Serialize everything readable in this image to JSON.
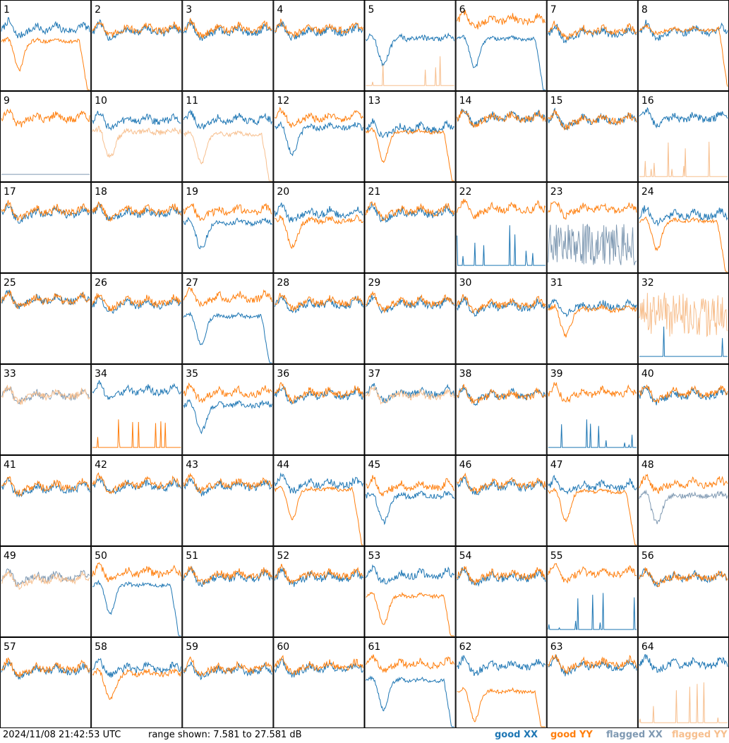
{
  "footer": {
    "timestamp": "2024/11/08 21:42:53 UTC",
    "range_text": "range shown: 7.581 to 27.581 dB"
  },
  "legend": [
    {
      "label": "good XX",
      "color": "#1f77b4"
    },
    {
      "label": "good YY",
      "color": "#ff7f0e"
    },
    {
      "label": "flagged XX",
      "color": "#7f99b2"
    },
    {
      "label": "flagged YY",
      "color": "#f7bf8e"
    }
  ],
  "chart_data": {
    "type": "line",
    "grid": {
      "rows": 8,
      "cols": 8
    },
    "ylim": [
      7.581,
      27.581
    ],
    "yunit": "dB",
    "colors": {
      "good_xx": "#1f77b4",
      "good_yy": "#ff7f0e",
      "flagged_xx": "#7f99b2",
      "flagged_yy": "#f7bf8e"
    },
    "panels": [
      {
        "label": "1",
        "xx": "good",
        "yy": "good",
        "xx_shape": "normal",
        "yy_shape": "dip_rolloff",
        "xx_level": 21.0,
        "yy_level": 18.5
      },
      {
        "label": "2",
        "xx": "good",
        "yy": "good",
        "xx_shape": "normal",
        "yy_shape": "normal",
        "xx_level": 20.5,
        "yy_level": 21.0
      },
      {
        "label": "3",
        "xx": "good",
        "yy": "good",
        "xx_shape": "normal",
        "yy_shape": "normal",
        "xx_level": 20.5,
        "yy_level": 21.0
      },
      {
        "label": "4",
        "xx": "good",
        "yy": "good",
        "xx_shape": "normal",
        "yy_shape": "normal",
        "xx_level": 20.5,
        "yy_level": 21.0
      },
      {
        "label": "5",
        "xx": "good",
        "yy": "flagged",
        "xx_shape": "dip",
        "yy_shape": "spikes",
        "xx_level": 19.0,
        "yy_level": 8.5
      },
      {
        "label": "6",
        "xx": "good",
        "yy": "good",
        "xx_shape": "dip_rolloff",
        "yy_shape": "normal",
        "xx_level": 19.0,
        "yy_level": 23.0
      },
      {
        "label": "7",
        "xx": "good",
        "yy": "good",
        "xx_shape": "normal",
        "yy_shape": "normal",
        "xx_level": 20.0,
        "yy_level": 20.5
      },
      {
        "label": "8",
        "xx": "good",
        "yy": "good",
        "xx_shape": "normal",
        "yy_shape": "rolloff",
        "xx_level": 20.5,
        "yy_level": 21.0
      },
      {
        "label": "9",
        "xx": "flagged",
        "yy": "good",
        "xx_shape": "spikes",
        "yy_shape": "normal",
        "xx_level": 9.0,
        "yy_level": 21.5
      },
      {
        "label": "10",
        "xx": "good",
        "yy": "flagged",
        "xx_shape": "normal",
        "yy_shape": "dip",
        "xx_level": 21.0,
        "yy_level": 18.5
      },
      {
        "label": "11",
        "xx": "good",
        "yy": "flagged",
        "xx_shape": "normal",
        "yy_shape": "dip_rolloff",
        "xx_level": 21.0,
        "yy_level": 18.0
      },
      {
        "label": "12",
        "xx": "good",
        "yy": "good",
        "xx_shape": "dip",
        "yy_shape": "normal",
        "xx_level": 19.5,
        "yy_level": 21.5
      },
      {
        "label": "13",
        "xx": "good",
        "yy": "good",
        "xx_shape": "normal",
        "yy_shape": "dip_rolloff",
        "xx_level": 19.0,
        "yy_level": 18.5
      },
      {
        "label": "14",
        "xx": "good",
        "yy": "good",
        "xx_shape": "normal",
        "yy_shape": "normal",
        "xx_level": 21.5,
        "yy_level": 21.5
      },
      {
        "label": "15",
        "xx": "good",
        "yy": "good",
        "xx_shape": "normal",
        "yy_shape": "normal",
        "xx_level": 21.0,
        "yy_level": 21.0
      },
      {
        "label": "16",
        "xx": "good",
        "yy": "flagged",
        "xx_shape": "normal",
        "yy_shape": "spikes",
        "xx_level": 21.5,
        "yy_level": 8.5
      },
      {
        "label": "17",
        "xx": "good",
        "yy": "good",
        "xx_shape": "normal",
        "yy_shape": "normal",
        "xx_level": 20.5,
        "yy_level": 21.0
      },
      {
        "label": "18",
        "xx": "good",
        "yy": "good",
        "xx_shape": "normal",
        "yy_shape": "normal",
        "xx_level": 20.5,
        "yy_level": 21.0
      },
      {
        "label": "19",
        "xx": "good",
        "yy": "good",
        "xx_shape": "dip",
        "yy_shape": "normal",
        "xx_level": 18.5,
        "yy_level": 21.0
      },
      {
        "label": "20",
        "xx": "good",
        "yy": "good",
        "xx_shape": "normal",
        "yy_shape": "dip",
        "xx_level": 20.5,
        "yy_level": 19.0
      },
      {
        "label": "21",
        "xx": "good",
        "yy": "good",
        "xx_shape": "normal",
        "yy_shape": "normal",
        "xx_level": 20.5,
        "yy_level": 21.0
      },
      {
        "label": "22",
        "xx": "good",
        "yy": "good",
        "xx_shape": "spikes",
        "yy_shape": "normal",
        "xx_level": 9.0,
        "yy_level": 21.5
      },
      {
        "label": "23",
        "xx": "flagged",
        "yy": "good",
        "xx_shape": "noisy",
        "yy_shape": "normal",
        "xx_level": 14.0,
        "yy_level": 21.5
      },
      {
        "label": "24",
        "xx": "good",
        "yy": "good",
        "xx_shape": "normal",
        "yy_shape": "dip_rolloff",
        "xx_level": 20.0,
        "yy_level": 19.0
      },
      {
        "label": "25",
        "xx": "good",
        "yy": "good",
        "xx_shape": "normal",
        "yy_shape": "normal",
        "xx_level": 21.5,
        "yy_level": 21.5
      },
      {
        "label": "26",
        "xx": "good",
        "yy": "good",
        "xx_shape": "normal",
        "yy_shape": "normal",
        "xx_level": 20.5,
        "yy_level": 21.0
      },
      {
        "label": "27",
        "xx": "good",
        "yy": "good",
        "xx_shape": "dip_rolloff",
        "yy_shape": "normal",
        "xx_level": 18.0,
        "yy_level": 22.0
      },
      {
        "label": "28",
        "xx": "good",
        "yy": "good",
        "xx_shape": "normal",
        "yy_shape": "normal",
        "xx_level": 20.5,
        "yy_level": 21.0
      },
      {
        "label": "29",
        "xx": "good",
        "yy": "good",
        "xx_shape": "normal",
        "yy_shape": "normal",
        "xx_level": 20.5,
        "yy_level": 21.0
      },
      {
        "label": "30",
        "xx": "good",
        "yy": "good",
        "xx_shape": "normal",
        "yy_shape": "normal",
        "xx_level": 20.0,
        "yy_level": 20.5
      },
      {
        "label": "31",
        "xx": "good",
        "yy": "good",
        "xx_shape": "normal",
        "yy_shape": "dip",
        "xx_level": 20.0,
        "yy_level": 19.5
      },
      {
        "label": "32",
        "xx": "good",
        "yy": "flagged",
        "xx_shape": "spikes",
        "yy_shape": "noisy",
        "xx_level": 9.0,
        "yy_level": 18.5
      },
      {
        "label": "33",
        "xx": "flagged",
        "yy": "flagged",
        "xx_shape": "normal",
        "yy_shape": "normal",
        "xx_level": 20.5,
        "yy_level": 20.5
      },
      {
        "label": "34",
        "xx": "good",
        "yy": "good",
        "xx_shape": "normal",
        "yy_shape": "spikes",
        "xx_level": 21.5,
        "yy_level": 9.0
      },
      {
        "label": "35",
        "xx": "good",
        "yy": "good",
        "xx_shape": "dip",
        "yy_shape": "normal",
        "xx_level": 18.5,
        "yy_level": 21.0
      },
      {
        "label": "36",
        "xx": "good",
        "yy": "good",
        "xx_shape": "normal",
        "yy_shape": "normal",
        "xx_level": 20.5,
        "yy_level": 21.0
      },
      {
        "label": "37",
        "xx": "good",
        "yy": "flagged",
        "xx_shape": "normal",
        "yy_shape": "normal",
        "xx_level": 21.0,
        "yy_level": 20.5
      },
      {
        "label": "38",
        "xx": "good",
        "yy": "good",
        "xx_shape": "normal",
        "yy_shape": "normal",
        "xx_level": 20.5,
        "yy_level": 20.5
      },
      {
        "label": "39",
        "xx": "good",
        "yy": "good",
        "xx_shape": "spikes",
        "yy_shape": "normal",
        "xx_level": 9.0,
        "yy_level": 21.0
      },
      {
        "label": "40",
        "xx": "good",
        "yy": "good",
        "xx_shape": "normal",
        "yy_shape": "normal",
        "xx_level": 20.5,
        "yy_level": 21.0
      },
      {
        "label": "41",
        "xx": "good",
        "yy": "good",
        "xx_shape": "normal",
        "yy_shape": "normal",
        "xx_level": 20.0,
        "yy_level": 20.5
      },
      {
        "label": "42",
        "xx": "good",
        "yy": "good",
        "xx_shape": "normal",
        "yy_shape": "normal",
        "xx_level": 20.5,
        "yy_level": 21.0
      },
      {
        "label": "43",
        "xx": "good",
        "yy": "good",
        "xx_shape": "normal",
        "yy_shape": "normal",
        "xx_level": 20.5,
        "yy_level": 21.0
      },
      {
        "label": "44",
        "xx": "good",
        "yy": "good",
        "xx_shape": "normal",
        "yy_shape": "dip_rolloff",
        "xx_level": 21.0,
        "yy_level": 20.0
      },
      {
        "label": "45",
        "xx": "good",
        "yy": "good",
        "xx_shape": "dip",
        "yy_shape": "normal",
        "xx_level": 18.5,
        "yy_level": 20.5
      },
      {
        "label": "46",
        "xx": "good",
        "yy": "good",
        "xx_shape": "normal",
        "yy_shape": "normal",
        "xx_level": 20.5,
        "yy_level": 21.0
      },
      {
        "label": "47",
        "xx": "good",
        "yy": "good",
        "xx_shape": "normal",
        "yy_shape": "dip_rolloff",
        "xx_level": 20.5,
        "yy_level": 19.5
      },
      {
        "label": "48",
        "xx": "flagged",
        "yy": "good",
        "xx_shape": "dip",
        "yy_shape": "normal",
        "xx_level": 18.5,
        "yy_level": 21.0
      },
      {
        "label": "49",
        "xx": "flagged",
        "yy": "flagged",
        "xx_shape": "normal",
        "yy_shape": "normal",
        "xx_level": 20.5,
        "yy_level": 20.0
      },
      {
        "label": "50",
        "xx": "good",
        "yy": "good",
        "xx_shape": "dip_rolloff",
        "yy_shape": "normal",
        "xx_level": 19.0,
        "yy_level": 21.5
      },
      {
        "label": "51",
        "xx": "good",
        "yy": "good",
        "xx_shape": "normal",
        "yy_shape": "normal",
        "xx_level": 20.5,
        "yy_level": 21.0
      },
      {
        "label": "52",
        "xx": "good",
        "yy": "good",
        "xx_shape": "normal",
        "yy_shape": "normal",
        "xx_level": 20.5,
        "yy_level": 21.0
      },
      {
        "label": "53",
        "xx": "good",
        "yy": "good",
        "xx_shape": "normal",
        "yy_shape": "dip_rolloff",
        "xx_level": 21.0,
        "yy_level": 16.5
      },
      {
        "label": "54",
        "xx": "good",
        "yy": "good",
        "xx_shape": "normal",
        "yy_shape": "normal",
        "xx_level": 20.5,
        "yy_level": 21.0
      },
      {
        "label": "55",
        "xx": "good",
        "yy": "good",
        "xx_shape": "spikes",
        "yy_shape": "normal",
        "xx_level": 9.0,
        "yy_level": 21.5
      },
      {
        "label": "56",
        "xx": "good",
        "yy": "good",
        "xx_shape": "normal",
        "yy_shape": "normal",
        "xx_level": 20.5,
        "yy_level": 20.5
      },
      {
        "label": "57",
        "xx": "good",
        "yy": "good",
        "xx_shape": "normal",
        "yy_shape": "normal",
        "xx_level": 20.0,
        "yy_level": 20.5
      },
      {
        "label": "58",
        "xx": "good",
        "yy": "good",
        "xx_shape": "normal",
        "yy_shape": "dip",
        "xx_level": 20.5,
        "yy_level": 19.5
      },
      {
        "label": "59",
        "xx": "good",
        "yy": "good",
        "xx_shape": "normal",
        "yy_shape": "normal",
        "xx_level": 20.0,
        "yy_level": 20.5
      },
      {
        "label": "60",
        "xx": "good",
        "yy": "good",
        "xx_shape": "normal",
        "yy_shape": "normal",
        "xx_level": 20.5,
        "yy_level": 21.0
      },
      {
        "label": "61",
        "xx": "good",
        "yy": "good",
        "xx_shape": "dip_rolloff",
        "yy_shape": "normal",
        "xx_level": 18.0,
        "yy_level": 21.5
      },
      {
        "label": "62",
        "xx": "good",
        "yy": "good",
        "xx_shape": "normal",
        "yy_shape": "dip_rolloff",
        "xx_level": 21.0,
        "yy_level": 15.5
      },
      {
        "label": "63",
        "xx": "good",
        "yy": "good",
        "xx_shape": "normal",
        "yy_shape": "normal",
        "xx_level": 21.0,
        "yy_level": 21.5
      },
      {
        "label": "64",
        "xx": "good",
        "yy": "flagged",
        "xx_shape": "normal",
        "yy_shape": "spikes",
        "xx_level": 21.5,
        "yy_level": 8.5
      }
    ]
  }
}
